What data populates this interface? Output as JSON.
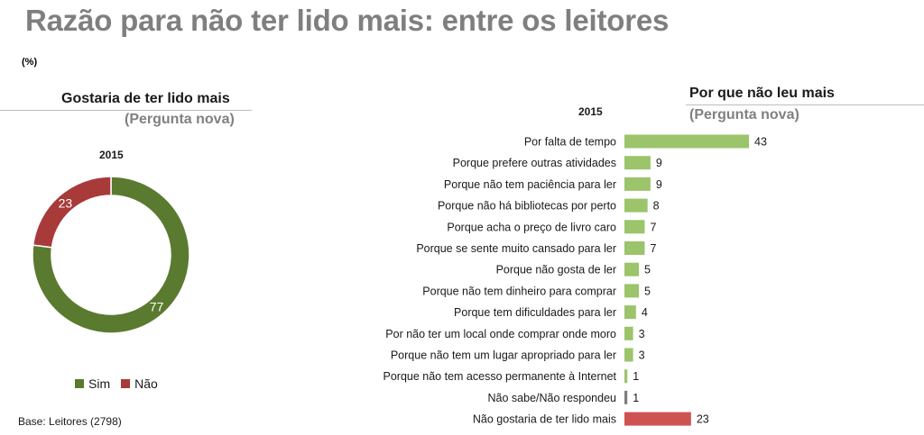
{
  "title": "Razão para não ter lido mais: entre os leitores",
  "unit_label": "(%)",
  "base_note": "Base: Leitores (2798)",
  "colors": {
    "sim": "#5a7a2f",
    "nao": "#a83a3a",
    "bar_green": "#9bc46b",
    "bar_gray": "#7f7f7f",
    "bar_red": "#cf5252"
  },
  "left_panel": {
    "title": "Gostaria de ter lido mais",
    "subtitle": "(Pergunta nova)",
    "year": "2015"
  },
  "right_panel": {
    "title": "Por que não leu mais",
    "subtitle": "(Pergunta nova)",
    "year": "2015"
  },
  "chart_data": [
    {
      "type": "pie",
      "title": "Gostaria de ter lido mais",
      "subtitle": "(Pergunta nova)",
      "year": "2015",
      "donut": true,
      "categories": [
        "Sim",
        "Não"
      ],
      "values": [
        77,
        23
      ],
      "colors": [
        "#5a7a2f",
        "#a83a3a"
      ],
      "legend": "bottom"
    },
    {
      "type": "bar",
      "orientation": "horizontal",
      "title": "Por que não leu mais",
      "subtitle": "(Pergunta nova)",
      "year": "2015",
      "categories": [
        "Por falta de tempo",
        "Porque prefere outras atividades",
        "Porque não tem paciência para ler",
        "Porque não há bibliotecas por perto",
        "Porque acha o preço de livro caro",
        "Porque se sente muito cansado para ler",
        "Porque não gosta de ler",
        "Porque não tem dinheiro para comprar",
        "Porque tem dificuldades para ler",
        "Por não ter um local onde comprar onde moro",
        "Porque não tem um lugar apropriado para ler",
        "Porque não tem acesso permanente à Internet",
        "Não sabe/Não respondeu",
        "Não gostaria de ter lido mais"
      ],
      "values": [
        43,
        9,
        9,
        8,
        7,
        7,
        5,
        5,
        4,
        3,
        3,
        1,
        1,
        23
      ],
      "bar_colors": [
        "green",
        "green",
        "green",
        "green",
        "green",
        "green",
        "green",
        "green",
        "green",
        "green",
        "green",
        "green",
        "gray",
        "red"
      ],
      "data_labels": true,
      "xlim": [
        0,
        43
      ],
      "grid": false
    }
  ]
}
